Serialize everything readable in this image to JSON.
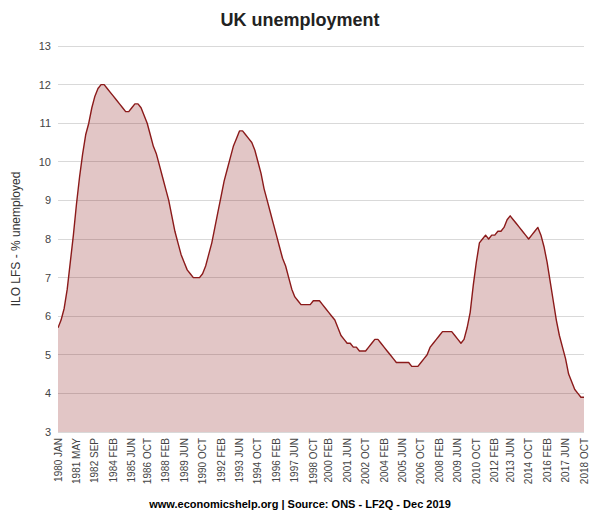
{
  "chart_data": {
    "type": "area",
    "title": "UK unemployment",
    "ylabel": "ILO LFS - % unemployed",
    "footer": "www.economicshelp.org | Source: ONS - LF2Q - Dec 2019",
    "color": "#8B1A1A",
    "grid": true,
    "ylim": [
      3,
      13
    ],
    "yticks": [
      3,
      4,
      5,
      6,
      7,
      8,
      9,
      10,
      11,
      12,
      13
    ],
    "categories": [
      "1980 JAN",
      null,
      null,
      null,
      null,
      null,
      "1981 MAY",
      null,
      null,
      null,
      null,
      null,
      "1982 SEP",
      null,
      null,
      null,
      null,
      null,
      "1984 FEB",
      null,
      null,
      null,
      null,
      null,
      "1985 JUN",
      null,
      null,
      null,
      null,
      "1986 OCT",
      null,
      null,
      null,
      null,
      null,
      "1988 FEB",
      null,
      null,
      null,
      null,
      null,
      "1989 JUN",
      null,
      null,
      null,
      null,
      null,
      "1990 OCT",
      null,
      null,
      null,
      null,
      null,
      "1992 FEB",
      null,
      null,
      null,
      null,
      null,
      "1993 JUN",
      null,
      null,
      null,
      null,
      null,
      "1994 OCT",
      null,
      null,
      null,
      null,
      null,
      "1996 FEB",
      null,
      null,
      null,
      null,
      null,
      "1997 JUN",
      null,
      null,
      null,
      null,
      null,
      "1998 OCT",
      null,
      null,
      null,
      null,
      "2000 FEB",
      null,
      null,
      null,
      null,
      null,
      "2001 JUN",
      null,
      null,
      null,
      null,
      null,
      "2002 OCT",
      null,
      null,
      null,
      null,
      null,
      "2004 FEB",
      null,
      null,
      null,
      null,
      null,
      "2005 JUN",
      null,
      null,
      null,
      null,
      null,
      "2006 OCT",
      null,
      null,
      null,
      null,
      null,
      "2008 FEB",
      null,
      null,
      null,
      null,
      null,
      "2009 JUN",
      null,
      null,
      null,
      null,
      null,
      "2010 OCT",
      null,
      null,
      null,
      null,
      null,
      "2012 FEB",
      null,
      null,
      null,
      null,
      "2013 JUN",
      null,
      null,
      null,
      null,
      null,
      "2014 OCT",
      null,
      null,
      null,
      null,
      null,
      "2016 FEB",
      null,
      null,
      null,
      null,
      null,
      "2017 JUN",
      null,
      null,
      null,
      null,
      null,
      "2018 OCT"
    ],
    "values": [
      5.7,
      5.9,
      6.2,
      6.7,
      7.4,
      8.1,
      8.9,
      9.6,
      10.2,
      10.7,
      11.0,
      11.4,
      11.7,
      11.9,
      12.0,
      12.0,
      11.9,
      11.8,
      11.7,
      11.6,
      11.5,
      11.4,
      11.3,
      11.3,
      11.4,
      11.5,
      11.5,
      11.4,
      11.2,
      11.0,
      10.7,
      10.4,
      10.2,
      9.9,
      9.6,
      9.3,
      9.0,
      8.6,
      8.2,
      7.9,
      7.6,
      7.4,
      7.2,
      7.1,
      7.0,
      7.0,
      7.0,
      7.1,
      7.3,
      7.6,
      7.9,
      8.3,
      8.7,
      9.1,
      9.5,
      9.8,
      10.1,
      10.4,
      10.6,
      10.8,
      10.8,
      10.7,
      10.6,
      10.5,
      10.3,
      10.0,
      9.7,
      9.3,
      9.0,
      8.7,
      8.4,
      8.1,
      7.8,
      7.5,
      7.3,
      7.0,
      6.7,
      6.5,
      6.4,
      6.3,
      6.3,
      6.3,
      6.3,
      6.4,
      6.4,
      6.4,
      6.3,
      6.2,
      6.1,
      6.0,
      5.9,
      5.7,
      5.5,
      5.4,
      5.3,
      5.3,
      5.2,
      5.2,
      5.1,
      5.1,
      5.1,
      5.2,
      5.3,
      5.4,
      5.4,
      5.3,
      5.2,
      5.1,
      5.0,
      4.9,
      4.8,
      4.8,
      4.8,
      4.8,
      4.8,
      4.7,
      4.7,
      4.7,
      4.8,
      4.9,
      5.0,
      5.2,
      5.3,
      5.4,
      5.5,
      5.6,
      5.6,
      5.6,
      5.6,
      5.5,
      5.4,
      5.3,
      5.4,
      5.7,
      6.1,
      6.8,
      7.4,
      7.9,
      8.0,
      8.1,
      8.0,
      8.1,
      8.1,
      8.2,
      8.2,
      8.3,
      8.5,
      8.6,
      8.5,
      8.4,
      8.3,
      8.2,
      8.1,
      8.0,
      8.1,
      8.2,
      8.3,
      8.1,
      7.8,
      7.4,
      6.9,
      6.4,
      5.9,
      5.5,
      5.2,
      4.9,
      4.5,
      4.3,
      4.1,
      4.0,
      3.9,
      3.9
    ]
  }
}
